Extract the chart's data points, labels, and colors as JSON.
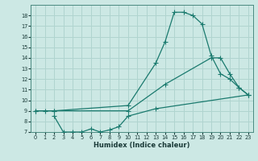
{
  "xlabel": "Humidex (Indice chaleur)",
  "xlim": [
    -0.5,
    23.5
  ],
  "ylim": [
    7,
    19
  ],
  "xticks": [
    0,
    1,
    2,
    3,
    4,
    5,
    6,
    7,
    8,
    9,
    10,
    11,
    12,
    13,
    14,
    15,
    16,
    17,
    18,
    19,
    20,
    21,
    22,
    23
  ],
  "yticks": [
    7,
    8,
    9,
    10,
    11,
    12,
    13,
    14,
    15,
    16,
    17,
    18
  ],
  "background_color": "#cce8e4",
  "grid_color": "#b0d4cf",
  "line_color": "#1a7a6e",
  "curve1_x": [
    0,
    1,
    2,
    10,
    13,
    14,
    15,
    16,
    17,
    18,
    19,
    20,
    21,
    22,
    23
  ],
  "curve1_y": [
    9,
    9,
    9,
    9.5,
    13.5,
    15.5,
    18.3,
    18.3,
    18.0,
    17.2,
    14.2,
    12.5,
    12.0,
    11.2,
    10.5
  ],
  "curve2_x": [
    0,
    2,
    10,
    14,
    19,
    20,
    21,
    22,
    23
  ],
  "curve2_y": [
    9,
    9,
    9,
    11.5,
    14.0,
    14.0,
    12.5,
    11.2,
    10.5
  ],
  "curve3_x": [
    2,
    3,
    4,
    5,
    6,
    7,
    8,
    9,
    10,
    13,
    23
  ],
  "curve3_y": [
    8.5,
    7.0,
    7.0,
    7.0,
    7.3,
    7.0,
    7.2,
    7.5,
    8.5,
    9.2,
    10.5
  ]
}
